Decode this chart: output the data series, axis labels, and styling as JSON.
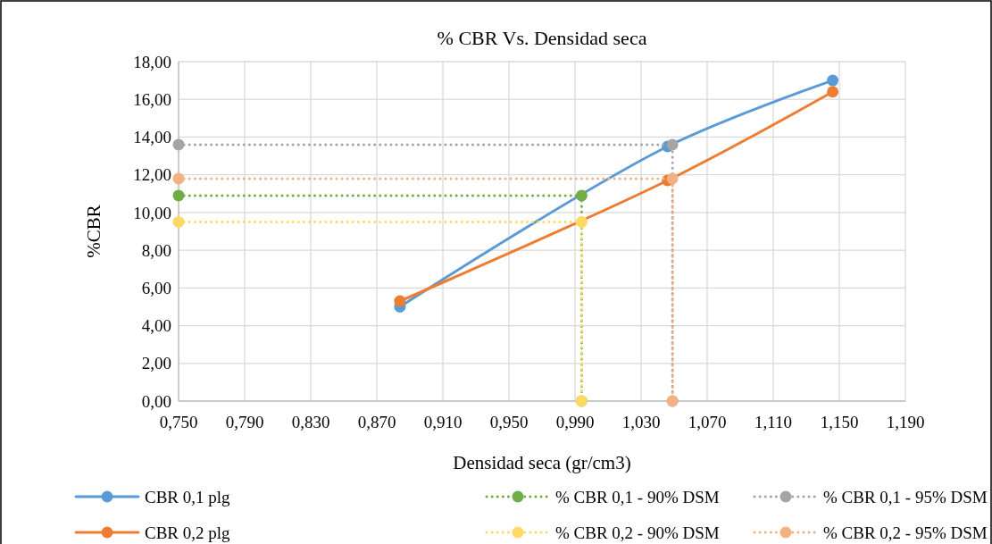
{
  "chart_data": {
    "type": "line",
    "title": "% CBR Vs. Densidad seca",
    "xlabel": "Densidad seca (gr/cm3)",
    "ylabel": "%CBR",
    "xlim": [
      0.75,
      1.19
    ],
    "xticks": [
      {
        "value": 0.75,
        "label": "0,750"
      },
      {
        "value": 0.79,
        "label": "0,790"
      },
      {
        "value": 0.83,
        "label": "0,830"
      },
      {
        "value": 0.87,
        "label": "0,870"
      },
      {
        "value": 0.91,
        "label": "0,910"
      },
      {
        "value": 0.95,
        "label": "0,950"
      },
      {
        "value": 0.99,
        "label": "0,990"
      },
      {
        "value": 1.03,
        "label": "1,030"
      },
      {
        "value": 1.07,
        "label": "1,070"
      },
      {
        "value": 1.11,
        "label": "1,110"
      },
      {
        "value": 1.15,
        "label": "1,150"
      },
      {
        "value": 1.19,
        "label": "1,190"
      }
    ],
    "ylim": [
      0,
      18
    ],
    "yticks": [
      {
        "value": 0,
        "label": "0,00"
      },
      {
        "value": 2,
        "label": "2,00"
      },
      {
        "value": 4,
        "label": "4,00"
      },
      {
        "value": 6,
        "label": "6,00"
      },
      {
        "value": 8,
        "label": "8,00"
      },
      {
        "value": 10,
        "label": "10,00"
      },
      {
        "value": 12,
        "label": "12,00"
      },
      {
        "value": 14,
        "label": "14,00"
      },
      {
        "value": 16,
        "label": "16,00"
      },
      {
        "value": 18,
        "label": "18,00"
      }
    ],
    "grid": true,
    "legend": "bottom",
    "marker": "circle",
    "series": [
      {
        "name": "CBR 0,1 plg",
        "color": "#5b9bd5",
        "line_style": "solid",
        "x": [
          0.884,
          1.046,
          1.146
        ],
        "values": [
          5.0,
          13.5,
          17.0
        ]
      },
      {
        "name": "CBR 0,2 plg",
        "color": "#ed7d31",
        "line_style": "solid",
        "x": [
          0.884,
          1.046,
          1.146
        ],
        "values": [
          5.3,
          11.7,
          16.4
        ]
      },
      {
        "name": "% CBR 0,1 - 90% DSM",
        "color": "#70ad47",
        "line_style": "dotted",
        "x": [
          0.75,
          0.994,
          0.994
        ],
        "values": [
          10.9,
          10.9,
          0
        ]
      },
      {
        "name": "% CBR 0,2 - 90% DSM",
        "color": "#ffd966",
        "line_style": "dotted",
        "x": [
          0.75,
          0.994,
          0.994
        ],
        "values": [
          9.5,
          9.5,
          0
        ]
      },
      {
        "name": "% CBR 0,1 - 95% DSM",
        "color": "#a5a5a5",
        "line_style": "dotted",
        "x": [
          0.75,
          1.049,
          1.049
        ],
        "values": [
          13.6,
          13.6,
          0
        ]
      },
      {
        "name": "% CBR 0,2 - 95% DSM",
        "color": "#f4b183",
        "line_style": "dotted",
        "x": [
          0.75,
          1.049,
          1.049
        ],
        "values": [
          11.8,
          11.8,
          0
        ]
      }
    ]
  }
}
